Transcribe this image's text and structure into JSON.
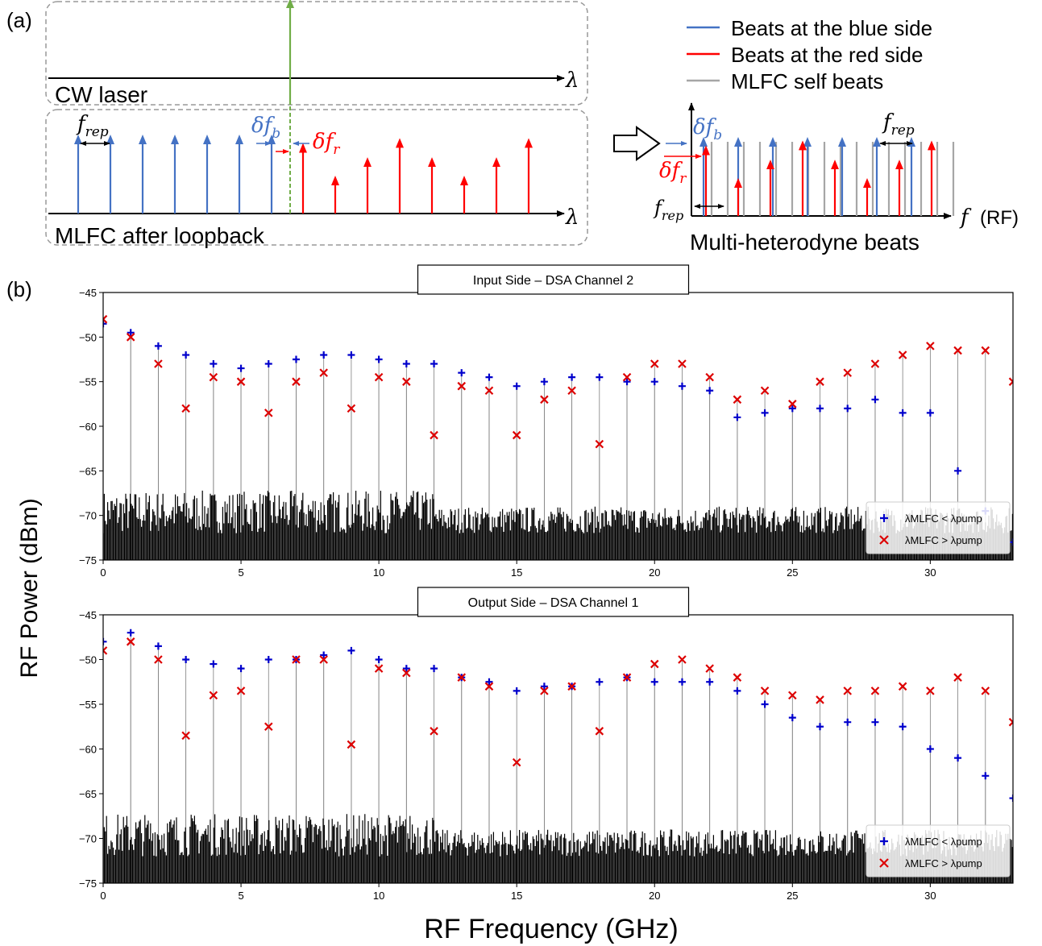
{
  "panel_labels": {
    "a": "(a)",
    "b": "(b)"
  },
  "schematic": {
    "cw_label": "CW laser",
    "mlfc_label": "MLFC after loopback",
    "lambda_symbol": "λ",
    "f_rep": {
      "base": "f",
      "sub": "rep"
    },
    "delta_f_b": {
      "base": "δf",
      "sub": "b"
    },
    "delta_f_r": {
      "base": "δf",
      "sub": "r"
    },
    "legend": [
      "Beats at the blue side",
      "Beats at the red side",
      "MLFC self beats"
    ],
    "f_symbol": "f",
    "rf_unit": "(RF)",
    "beats_title": "Multi-heterodyne beats",
    "blue_heights": [
      1,
      1,
      1,
      1,
      1,
      1,
      1
    ],
    "red_heights": [
      0.88,
      0.42,
      0.68,
      0.95,
      0.68,
      0.42,
      0.68,
      0.95
    ],
    "colors": {
      "blue": "#4472C4",
      "red": "#FF0000",
      "green": "#70AD47",
      "gray": "#A6A6A6"
    }
  },
  "axes": {
    "ylabel": "RF Power (dBm)",
    "xlabel": "RF Frequency (GHz)"
  },
  "chart_data": [
    {
      "type": "scatter",
      "title": "Input Side – DSA Channel 2",
      "xlim": [
        0,
        33
      ],
      "ylim": [
        -75,
        -45
      ],
      "xticks": [
        0,
        5,
        10,
        15,
        20,
        25,
        30
      ],
      "yticks": [
        -45,
        -50,
        -55,
        -60,
        -65,
        -70,
        -75
      ],
      "grid": false,
      "legend_position": "lower-right",
      "series": [
        {
          "name": "λMLFC < λpump",
          "marker": "+",
          "color": "#0000CC",
          "x": [
            0,
            1,
            2,
            3,
            4,
            5,
            6,
            7,
            8,
            9,
            10,
            11,
            12,
            13,
            14,
            15,
            16,
            17,
            18,
            19,
            20,
            21,
            22,
            23,
            24,
            25,
            26,
            27,
            28,
            29,
            30,
            31,
            32,
            33
          ],
          "y": [
            -48.5,
            -49.5,
            -51,
            -52,
            -53,
            -53.5,
            -53,
            -52.5,
            -52,
            -52,
            -52.5,
            -53,
            -53,
            -54,
            -54.5,
            -55.5,
            -55,
            -54.5,
            -54.5,
            -55,
            -55,
            -55.5,
            -56,
            -59,
            -58.5,
            -58,
            -58,
            -58,
            -57,
            -58.5,
            -58.5,
            -65,
            -69.5,
            -73
          ]
        },
        {
          "name": "λMLFC > λpump",
          "marker": "x",
          "color": "#DD0000",
          "x": [
            0,
            1,
            2,
            3,
            4,
            5,
            6,
            7,
            8,
            9,
            10,
            11,
            12,
            13,
            14,
            15,
            16,
            17,
            18,
            19,
            20,
            21,
            22,
            23,
            24,
            25,
            26,
            27,
            28,
            29,
            30,
            31,
            32,
            33
          ],
          "y": [
            -48,
            -50,
            -53,
            -58,
            -54.5,
            -55,
            -58.5,
            -55,
            -54,
            -58,
            -54.5,
            -55,
            -61,
            -55.5,
            -56,
            -61,
            -57,
            -56,
            -62,
            -54.5,
            -53,
            -53,
            -54.5,
            -57,
            -56,
            -57.5,
            -55,
            -54,
            -53,
            -52,
            -51,
            -51.5,
            -51.5,
            -55
          ]
        }
      ]
    },
    {
      "type": "scatter",
      "title": "Output Side – DSA Channel 1",
      "xlim": [
        0,
        33
      ],
      "ylim": [
        -75,
        -45
      ],
      "xticks": [
        0,
        5,
        10,
        15,
        20,
        25,
        30
      ],
      "yticks": [
        -45,
        -50,
        -55,
        -60,
        -65,
        -70,
        -75
      ],
      "grid": false,
      "legend_position": "lower-right",
      "series": [
        {
          "name": "λMLFC < λpump",
          "marker": "+",
          "color": "#0000CC",
          "x": [
            0,
            1,
            2,
            3,
            4,
            5,
            6,
            7,
            8,
            9,
            10,
            11,
            12,
            13,
            14,
            15,
            16,
            17,
            18,
            19,
            20,
            21,
            22,
            23,
            24,
            25,
            26,
            27,
            28,
            29,
            30,
            31,
            32,
            33
          ],
          "y": [
            -48,
            -47,
            -48.5,
            -50,
            -50.5,
            -51,
            -50,
            -50,
            -49.5,
            -49,
            -50,
            -51,
            -51,
            -52,
            -52.5,
            -53.5,
            -53,
            -53,
            -52.5,
            -52,
            -52.5,
            -52.5,
            -52.5,
            -53.5,
            -55,
            -56.5,
            -57.5,
            -57,
            -57,
            -57.5,
            -60,
            -61,
            -63,
            -65.5
          ]
        },
        {
          "name": "λMLFC > λpump",
          "marker": "x",
          "color": "#DD0000",
          "x": [
            0,
            1,
            2,
            3,
            4,
            5,
            6,
            7,
            8,
            9,
            10,
            11,
            12,
            13,
            14,
            15,
            16,
            17,
            18,
            19,
            20,
            21,
            22,
            23,
            24,
            25,
            26,
            27,
            28,
            29,
            30,
            31,
            32,
            33
          ],
          "y": [
            -49,
            -48,
            -50,
            -58.5,
            -54,
            -53.5,
            -57.5,
            -50,
            -50,
            -59.5,
            -51,
            -51.5,
            -58,
            -52,
            -53,
            -61.5,
            -53.5,
            -53,
            -58,
            -52,
            -50.5,
            -50,
            -51,
            -52,
            -53.5,
            -54,
            -54.5,
            -53.5,
            -53.5,
            -53,
            -53.5,
            -52,
            -53.5,
            -57
          ]
        }
      ]
    }
  ]
}
